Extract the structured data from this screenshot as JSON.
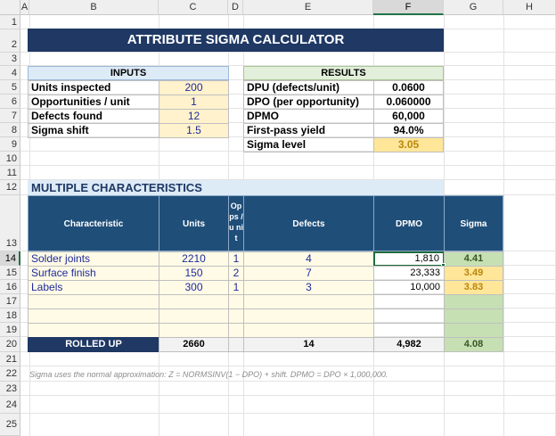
{
  "columns": [
    "A",
    "B",
    "C",
    "D",
    "E",
    "F",
    "G",
    "H"
  ],
  "rows": [
    "1",
    "2",
    "3",
    "4",
    "5",
    "6",
    "7",
    "8",
    "9",
    "10",
    "11",
    "12",
    "13",
    "14",
    "15",
    "16",
    "17",
    "18",
    "19",
    "20",
    "21",
    "22",
    "23",
    "24",
    "25"
  ],
  "title": "ATTRIBUTE SIGMA CALCULATOR",
  "inputs": {
    "header": "INPUTS",
    "items": [
      {
        "label": "Units inspected",
        "value": "200"
      },
      {
        "label": "Opportunities / unit",
        "value": "1"
      },
      {
        "label": "Defects found",
        "value": "12"
      },
      {
        "label": "Sigma shift",
        "value": "1.5"
      }
    ]
  },
  "results": {
    "header": "RESULTS",
    "items": [
      {
        "label": "DPU (defects/unit)",
        "value": "0.0600"
      },
      {
        "label": "DPO (per opportunity)",
        "value": "0.060000"
      },
      {
        "label": "DPMO",
        "value": "60,000"
      },
      {
        "label": "First-pass yield",
        "value": "94.0%"
      },
      {
        "label": "Sigma level",
        "value": "3.05"
      }
    ]
  },
  "multi": {
    "section_title": "MULTIPLE CHARACTERISTICS",
    "headers": {
      "characteristic": "Characteristic",
      "units": "Units",
      "ops": "Op ps /u nit",
      "defects": "Defects",
      "dpmo": "DPMO",
      "sigma": "Sigma"
    },
    "rows": [
      {
        "name": "Solder joints",
        "units": "2210",
        "ops": "1",
        "defects": "4",
        "dpmo": "1,810",
        "sigma": "4.41"
      },
      {
        "name": "Surface finish",
        "units": "150",
        "ops": "2",
        "defects": "7",
        "dpmo": "23,333",
        "sigma": "3.49"
      },
      {
        "name": "Labels",
        "units": "300",
        "ops": "1",
        "defects": "3",
        "dpmo": "10,000",
        "sigma": "3.83"
      }
    ],
    "total": {
      "label": "ROLLED UP",
      "units": "2660",
      "defects": "14",
      "dpmo": "4,982",
      "sigma": "4.08"
    }
  },
  "note": "Sigma uses the normal approximation: Z = NORMSINV(1 − DPO) + shift.  DPMO = DPO × 1,000,000.",
  "colors": {
    "title_bg": "#1f3864",
    "table_header_bg": "#1f4e79",
    "input_bg": "#fff2cc",
    "sigma_good": "#c6e0b4",
    "sigma_warn": "#ffe699"
  }
}
